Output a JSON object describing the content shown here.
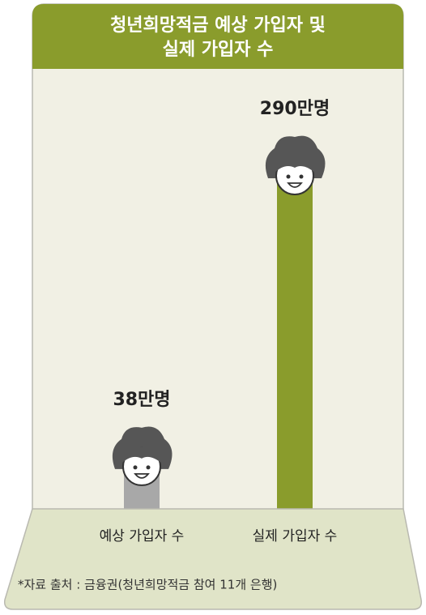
{
  "chart_data": {
    "type": "bar",
    "title": [
      "청년희망적금 예상 가입자 및",
      "실제 가입자 수"
    ],
    "categories": [
      "예상 가입자 수",
      "실제 가입자 수"
    ],
    "values": [
      38,
      290
    ],
    "value_labels": [
      "38만명",
      "290만명"
    ],
    "colors": [
      "#a8a8a8",
      "#8a9c2c"
    ],
    "source": "*자료 출처 : 금융권(청년희망적금 참여 11개 은행)"
  }
}
